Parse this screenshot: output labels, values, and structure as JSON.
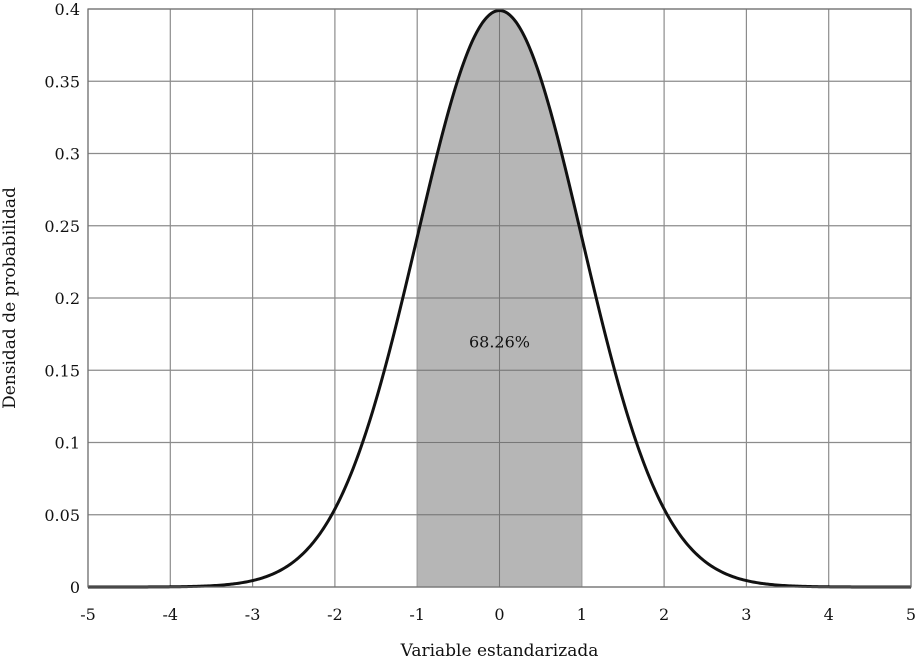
{
  "chart_data": {
    "type": "area",
    "xlabel": "Variable estandarizada",
    "ylabel": "Densidad de probabilidad",
    "xlim": [
      -5,
      5
    ],
    "ylim": [
      0,
      0.4
    ],
    "x_ticks": [
      -5,
      -4,
      -3,
      -2,
      -1,
      0,
      1,
      2,
      3,
      4,
      5
    ],
    "y_ticks": [
      0,
      0.05,
      0.1,
      0.15,
      0.2,
      0.25,
      0.3,
      0.35,
      0.4
    ],
    "x_tick_labels": [
      "-5",
      "-4",
      "-3",
      "-2",
      "-1",
      "0",
      "1",
      "2",
      "3",
      "4",
      "5"
    ],
    "y_tick_labels": [
      "0",
      "0.05",
      "0.1",
      "0.15",
      "0.2",
      "0.25",
      "0.3",
      "0.35",
      "0.4"
    ],
    "grid": true,
    "series": [
      {
        "x": [
          -5,
          -4.5,
          -4,
          -3.5,
          -3,
          -2.5,
          -2,
          -1.5,
          -1,
          -0.5,
          0,
          0.5,
          1,
          1.5,
          2,
          2.5,
          3,
          3.5,
          4,
          4.5,
          5
        ],
        "values": [
          0.0,
          0.0,
          0.0001,
          0.0009,
          0.0044,
          0.0175,
          0.054,
          0.1295,
          0.242,
          0.3521,
          0.3989,
          0.3521,
          0.242,
          0.1295,
          0.054,
          0.0175,
          0.0044,
          0.0009,
          0.0001,
          0.0,
          0.0
        ]
      }
    ],
    "shaded_region": {
      "from": -1,
      "to": 1,
      "color": "#a9a9a9"
    },
    "annotations": [
      {
        "text": "68.26%",
        "x": 0,
        "y": 0.17
      }
    ],
    "colors": {
      "curve": "#111111",
      "grid": "#8c8c8c",
      "shade": "#a9a9a9"
    }
  }
}
